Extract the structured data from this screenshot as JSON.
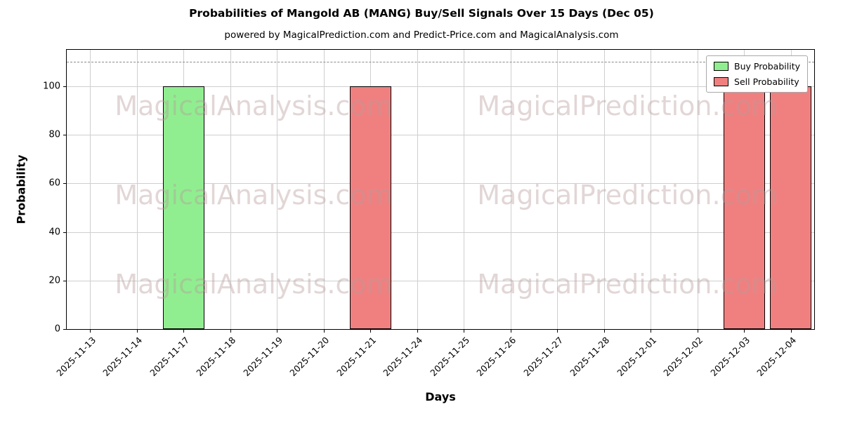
{
  "chart_data": {
    "type": "bar",
    "title": "Probabilities of Mangold AB (MANG) Buy/Sell Signals Over 15 Days (Dec 05)",
    "subtitle": "powered by MagicalPrediction.com and Predict-Price.com and MagicalAnalysis.com",
    "xlabel": "Days",
    "ylabel": "Probability",
    "categories": [
      "2025-11-13",
      "2025-11-14",
      "2025-11-17",
      "2025-11-18",
      "2025-11-19",
      "2025-11-20",
      "2025-11-21",
      "2025-11-24",
      "2025-11-25",
      "2025-11-26",
      "2025-11-27",
      "2025-11-28",
      "2025-12-01",
      "2025-12-02",
      "2025-12-03",
      "2025-12-04"
    ],
    "series": [
      {
        "name": "Buy Probability",
        "color": "#90EE90",
        "values": [
          0,
          0,
          100,
          0,
          0,
          0,
          0,
          0,
          0,
          0,
          0,
          0,
          0,
          0,
          0,
          0
        ]
      },
      {
        "name": "Sell Probability",
        "color": "#F08080",
        "values": [
          0,
          0,
          0,
          0,
          0,
          0,
          100,
          0,
          0,
          0,
          0,
          0,
          0,
          0,
          100,
          100
        ]
      }
    ],
    "ylim": [
      0,
      115
    ],
    "yticks": [
      0,
      20,
      40,
      60,
      80,
      100
    ],
    "dashed_line_y": 110,
    "bar_edge_color": "#000000",
    "grid_color": "#cfcfcf",
    "legend_position": "upper right",
    "watermarks": [
      "MagicalAnalysis.com",
      "MagicalPrediction.com"
    ],
    "watermark_color": "#b89a9a",
    "watermark_opacity": "0.40"
  }
}
